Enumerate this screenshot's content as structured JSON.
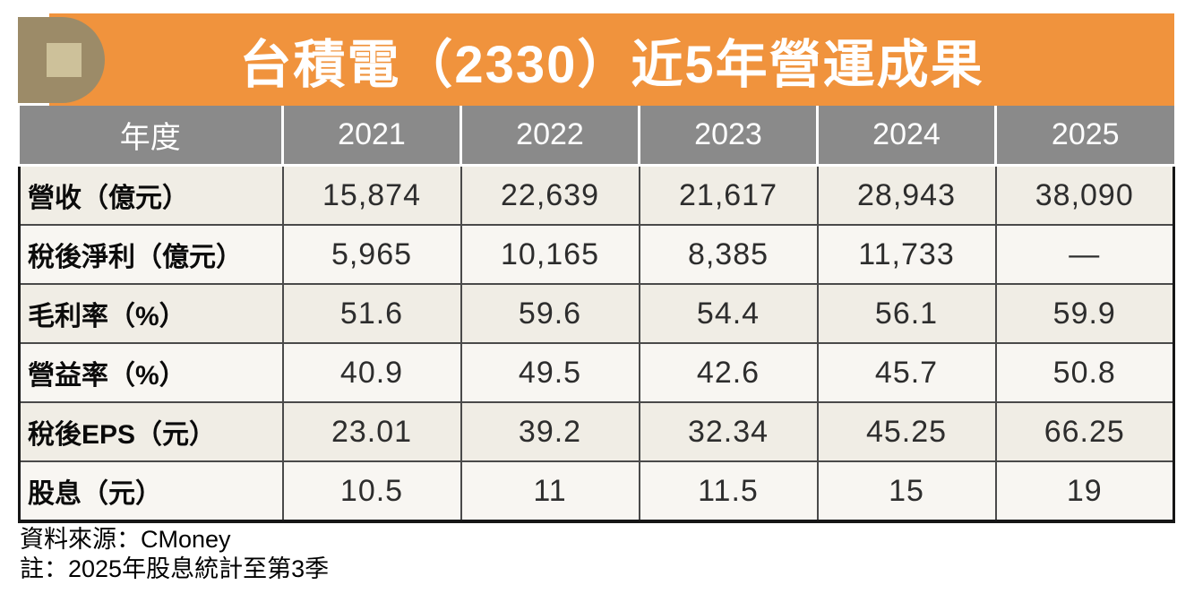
{
  "title": "台積電（2330）近5年營運成果",
  "table": {
    "header": [
      "年度",
      "2021",
      "2022",
      "2023",
      "2024",
      "2025"
    ],
    "rows": [
      {
        "label": "營收（億元）",
        "values": [
          "15,874",
          "22,639",
          "21,617",
          "28,943",
          "38,090"
        ]
      },
      {
        "label": "稅後淨利（億元）",
        "values": [
          "5,965",
          "10,165",
          "8,385",
          "11,733",
          "—"
        ]
      },
      {
        "label": "毛利率（%）",
        "values": [
          "51.6",
          "59.6",
          "54.4",
          "56.1",
          "59.9"
        ]
      },
      {
        "label": "營益率（%）",
        "values": [
          "40.9",
          "49.5",
          "42.6",
          "45.7",
          "50.8"
        ]
      },
      {
        "label": "稅後EPS（元）",
        "values": [
          "23.01",
          "39.2",
          "32.34",
          "45.25",
          "66.25"
        ]
      },
      {
        "label": "股息（元）",
        "values": [
          "10.5",
          "11",
          "11.5",
          "15",
          "19"
        ]
      }
    ]
  },
  "footer": {
    "source": "資料來源：CMoney",
    "note": "註：2025年股息統計至第3季"
  },
  "colors": {
    "banner_orange": "#F0933D",
    "badge_olive": "#9C8B68",
    "badge_square_tan": "#CDC19A",
    "header_gray": "#8A8A8A",
    "row_cream_odd": "#F0EDE5",
    "row_cream_even": "#F8F6F2",
    "grid_border": "#4A4A4A",
    "outer_border": "#161616"
  },
  "chart_data": {
    "type": "table",
    "title": "台積電（2330）近5年營運成果",
    "columns": [
      "年度",
      "2021",
      "2022",
      "2023",
      "2024",
      "2025"
    ],
    "rows": [
      [
        "營收（億元）",
        "15,874",
        "22,639",
        "21,617",
        "28,943",
        "38,090"
      ],
      [
        "稅後淨利（億元）",
        "5,965",
        "10,165",
        "8,385",
        "11,733",
        "—"
      ],
      [
        "毛利率（%）",
        "51.6",
        "59.6",
        "54.4",
        "56.1",
        "59.9"
      ],
      [
        "營益率（%）",
        "40.9",
        "49.5",
        "42.6",
        "45.7",
        "50.8"
      ],
      [
        "稅後EPS（元）",
        "23.01",
        "39.2",
        "32.34",
        "45.25",
        "66.25"
      ],
      [
        "股息（元）",
        "10.5",
        "11",
        "11.5",
        "15",
        "19"
      ]
    ],
    "source": "CMoney",
    "note": "2025年股息統計至第3季"
  }
}
